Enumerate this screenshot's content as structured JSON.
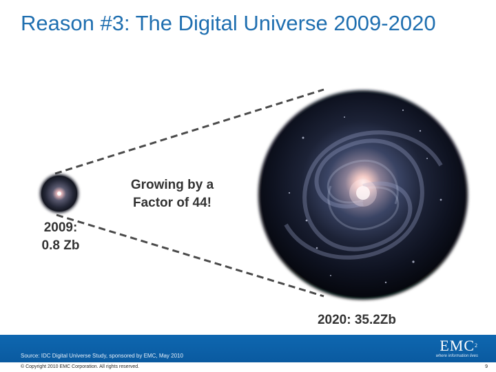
{
  "slide": {
    "title": "Reason #3: The Digital Universe 2009-2020",
    "growth_text_line1": "Growing by a",
    "growth_text_line2": "Factor of 44!",
    "small_label_line1": "2009:",
    "small_label_line2": "0.8 Zb",
    "large_label": "2020: 35.2Zb"
  },
  "footer": {
    "source": "Source: IDC Digital Universe Study, sponsored by EMC, May 2010",
    "copyright": "© Copyright 2010 EMC Corporation. All rights reserved.",
    "page_number": "9",
    "logo_text": "EMC",
    "logo_superscript": "2",
    "logo_tagline": "where information lives"
  },
  "colors": {
    "title": "#1f6fb0",
    "footer_bar": "#0e67b0",
    "label_text": "#333333"
  }
}
